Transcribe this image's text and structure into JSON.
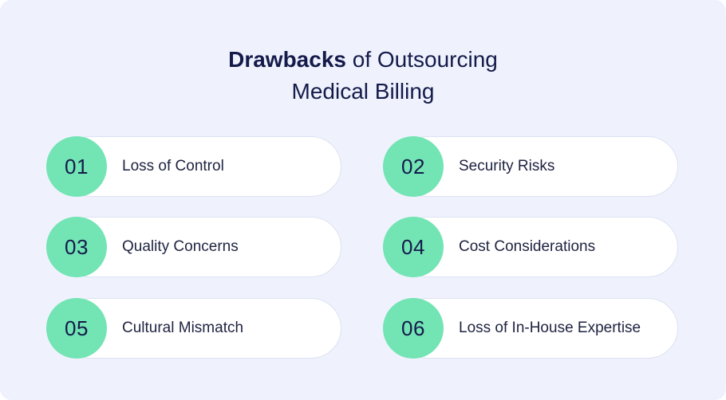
{
  "title": {
    "bold": "Drawbacks",
    "rest": "of Outsourcing",
    "line2": "Medical Billing"
  },
  "items": [
    {
      "number": "01",
      "label": "Loss of Control"
    },
    {
      "number": "02",
      "label": "Security Risks"
    },
    {
      "number": "03",
      "label": "Quality Concerns"
    },
    {
      "number": "04",
      "label": "Cost Considerations"
    },
    {
      "number": "05",
      "label": "Cultural Mismatch"
    },
    {
      "number": "06",
      "label": "Loss of In-House Expertise"
    }
  ],
  "colors": {
    "background": "#eff2fd",
    "badge": "#73e4b4",
    "text": "#141b4a",
    "card": "#ffffff"
  }
}
